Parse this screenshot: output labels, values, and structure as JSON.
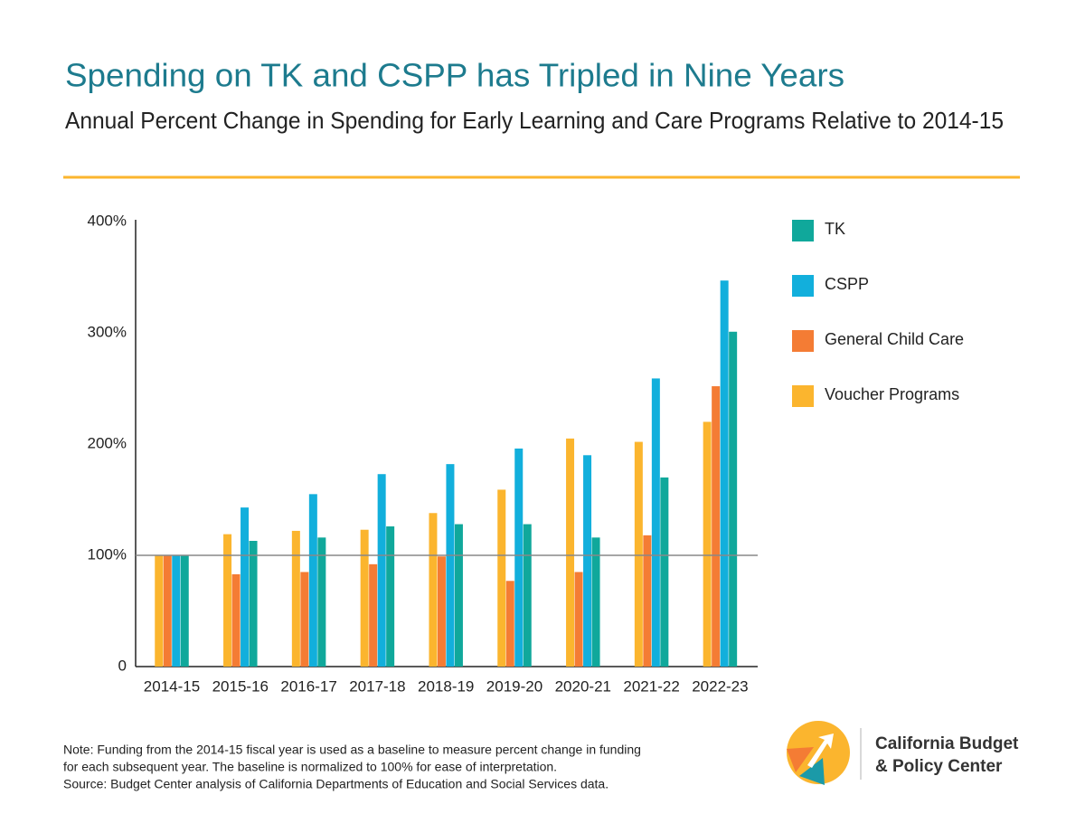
{
  "chart_data": {
    "type": "bar",
    "title": "Spending on TK and CSPP has Tripled in Nine Years",
    "subtitle": "Annual Percent Change in Spending for Early Learning and Care Programs Relative to 2014-15",
    "categories": [
      "2014-15",
      "2015-16",
      "2016-17",
      "2017-18",
      "2018-19",
      "2019-20",
      "2020-21",
      "2021-22",
      "2022-23"
    ],
    "series": [
      {
        "name": "TK",
        "color": "#10a89b",
        "values": [
          100,
          113,
          116,
          126,
          128,
          128,
          116,
          170,
          301
        ]
      },
      {
        "name": "CSPP",
        "color": "#12afdc",
        "values": [
          100,
          143,
          155,
          173,
          182,
          196,
          190,
          259,
          347
        ]
      },
      {
        "name": "General Child Care",
        "color": "#f47c34",
        "values": [
          100,
          83,
          85,
          92,
          99,
          77,
          85,
          118,
          252
        ]
      },
      {
        "name": "Voucher Programs",
        "color": "#fbb52e",
        "values": [
          100,
          119,
          122,
          123,
          138,
          159,
          205,
          202,
          220
        ]
      }
    ],
    "ylim": [
      0,
      400
    ],
    "yticks": [
      0,
      {
        "value": 100,
        "label": "100%"
      },
      {
        "value": 200,
        "label": "200%"
      },
      {
        "value": 300,
        "label": "300%"
      },
      {
        "value": 400,
        "label": "400%"
      }
    ],
    "reference_line": 100,
    "grid": false,
    "legend": "right"
  },
  "note": [
    "Note: Funding from the 2014-15 fiscal year is used as a baseline to measure percent change in funding",
    "for each subsequent year. The baseline is normalized to 100% for ease of interpretation.",
    "Source: Budget Center analysis of California Departments of Education and Social Services data."
  ],
  "logo": {
    "line1": "California Budget",
    "line2": "& Policy Center"
  }
}
